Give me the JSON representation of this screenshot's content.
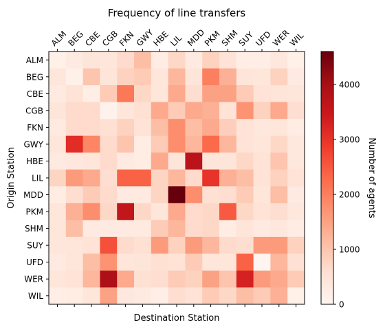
{
  "chart_data": {
    "type": "heatmap",
    "title": "Frequency of line transfers",
    "xlabel": "Destination Station",
    "ylabel": "Origin Station",
    "colorbar_label": "Number of agents",
    "colormap": "Reds",
    "vmin": 0,
    "vmax": 4600,
    "colorbar_ticks": [
      0,
      1000,
      2000,
      3000,
      4000
    ],
    "x_categories": [
      "ALM",
      "BEG",
      "CBE",
      "CGB",
      "FKN",
      "GWY",
      "HBE",
      "LIL",
      "MDD",
      "PKM",
      "SHM",
      "SUY",
      "UFD",
      "WER",
      "WIL"
    ],
    "y_categories": [
      "ALM",
      "BEG",
      "CBE",
      "CGB",
      "FKN",
      "GWY",
      "HBE",
      "LIL",
      "MDD",
      "PKM",
      "SHM",
      "SUY",
      "UFD",
      "WER",
      "WIL"
    ],
    "values": [
      [
        150,
        300,
        450,
        400,
        650,
        1100,
        250,
        700,
        300,
        800,
        500,
        200,
        200,
        350,
        150
      ],
      [
        400,
        150,
        1000,
        450,
        800,
        900,
        400,
        1200,
        450,
        2000,
        1300,
        450,
        400,
        800,
        300
      ],
      [
        300,
        500,
        200,
        900,
        2100,
        700,
        400,
        1400,
        600,
        1500,
        1500,
        900,
        500,
        450,
        400
      ],
      [
        450,
        650,
        650,
        100,
        400,
        550,
        1400,
        900,
        1400,
        1300,
        500,
        1700,
        800,
        1400,
        600
      ],
      [
        300,
        650,
        650,
        550,
        800,
        500,
        1100,
        1800,
        1100,
        1400,
        850,
        500,
        350,
        400,
        250
      ],
      [
        400,
        3100,
        1900,
        650,
        1000,
        250,
        900,
        1800,
        1200,
        2300,
        1200,
        500,
        400,
        700,
        350
      ],
      [
        300,
        350,
        400,
        650,
        300,
        250,
        1400,
        450,
        3700,
        450,
        450,
        700,
        500,
        1000,
        350
      ],
      [
        750,
        1600,
        1400,
        600,
        2400,
        2400,
        750,
        1200,
        650,
        3000,
        1300,
        1100,
        500,
        800,
        500
      ],
      [
        250,
        600,
        900,
        650,
        300,
        300,
        750,
        4600,
        1800,
        550,
        600,
        900,
        400,
        1100,
        300
      ],
      [
        400,
        1300,
        1800,
        700,
        3600,
        700,
        400,
        1400,
        650,
        700,
        2500,
        700,
        500,
        600,
        350
      ],
      [
        400,
        1100,
        300,
        300,
        300,
        300,
        900,
        1200,
        650,
        700,
        250,
        450,
        300,
        350,
        250
      ],
      [
        400,
        400,
        500,
        2600,
        650,
        550,
        1600,
        800,
        1600,
        1200,
        650,
        600,
        1600,
        1600,
        800
      ],
      [
        300,
        400,
        1100,
        1700,
        400,
        450,
        550,
        500,
        900,
        400,
        400,
        2400,
        0,
        1200,
        550
      ],
      [
        400,
        500,
        1200,
        3900,
        1400,
        550,
        600,
        900,
        800,
        1500,
        1000,
        3300,
        1600,
        1400,
        900
      ],
      [
        200,
        250,
        400,
        1500,
        350,
        300,
        200,
        600,
        500,
        900,
        700,
        1100,
        900,
        1300,
        150
      ]
    ]
  }
}
